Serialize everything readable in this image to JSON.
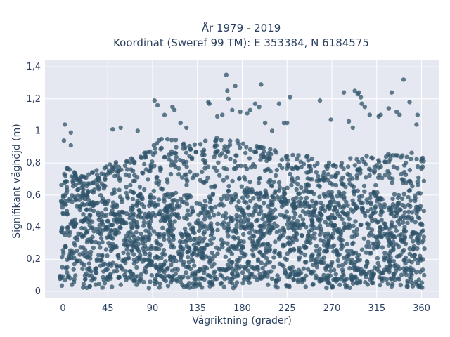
{
  "chart_data": {
    "type": "scatter",
    "title": [
      "År 1979 - 2019",
      "Koordinat (Sweref 99 TM): E 353384, N 6184575"
    ],
    "xlabel": "Vågriktning (grader)",
    "ylabel": "Signifikant våghöjd (m)",
    "xlim": [
      -18,
      378
    ],
    "ylim": [
      -0.04,
      1.44
    ],
    "xticks": [
      0,
      45,
      90,
      135,
      180,
      225,
      270,
      315,
      360
    ],
    "xtick_labels": [
      "0",
      "45",
      "90",
      "135",
      "180",
      "225",
      "270",
      "315",
      "360"
    ],
    "yticks": [
      0,
      0.2,
      0.4,
      0.6,
      0.8,
      1.0,
      1.2,
      1.4
    ],
    "ytick_labels": [
      "0",
      "0,2",
      "0,4",
      "0,6",
      "0,8",
      "1",
      "1,2",
      "1,4"
    ],
    "grid": true,
    "colors": {
      "marker": "#2f5369",
      "plot_bg": "#e5e8f0",
      "grid": "#ffffff",
      "text": "#2a3f5f"
    },
    "outliers": [
      {
        "x": 2,
        "y": 1.04
      },
      {
        "x": 8,
        "y": 0.99
      },
      {
        "x": 1,
        "y": 0.94
      },
      {
        "x": 8,
        "y": 0.91
      },
      {
        "x": 50,
        "y": 1.01
      },
      {
        "x": 58,
        "y": 1.02
      },
      {
        "x": 75,
        "y": 1.0
      },
      {
        "x": 92,
        "y": 1.19
      },
      {
        "x": 95,
        "y": 1.16
      },
      {
        "x": 102,
        "y": 1.1
      },
      {
        "x": 110,
        "y": 1.15
      },
      {
        "x": 112,
        "y": 1.13
      },
      {
        "x": 118,
        "y": 1.05
      },
      {
        "x": 124,
        "y": 1.02
      },
      {
        "x": 146,
        "y": 1.18
      },
      {
        "x": 147,
        "y": 1.17
      },
      {
        "x": 155,
        "y": 1.09
      },
      {
        "x": 160,
        "y": 1.1
      },
      {
        "x": 164,
        "y": 1.35
      },
      {
        "x": 165,
        "y": 1.25
      },
      {
        "x": 166,
        "y": 1.2
      },
      {
        "x": 170,
        "y": 1.13
      },
      {
        "x": 173,
        "y": 1.28
      },
      {
        "x": 178,
        "y": 1.12
      },
      {
        "x": 185,
        "y": 1.11
      },
      {
        "x": 188,
        "y": 1.13
      },
      {
        "x": 193,
        "y": 1.17
      },
      {
        "x": 197,
        "y": 1.15
      },
      {
        "x": 199,
        "y": 1.29
      },
      {
        "x": 203,
        "y": 1.05
      },
      {
        "x": 210,
        "y": 1.0
      },
      {
        "x": 217,
        "y": 1.17
      },
      {
        "x": 222,
        "y": 1.05
      },
      {
        "x": 225,
        "y": 1.05
      },
      {
        "x": 228,
        "y": 1.21
      },
      {
        "x": 258,
        "y": 1.19
      },
      {
        "x": 269,
        "y": 1.07
      },
      {
        "x": 282,
        "y": 1.24
      },
      {
        "x": 287,
        "y": 1.06
      },
      {
        "x": 291,
        "y": 1.02
      },
      {
        "x": 293,
        "y": 1.25
      },
      {
        "x": 296,
        "y": 1.23
      },
      {
        "x": 297,
        "y": 1.24
      },
      {
        "x": 299,
        "y": 1.21
      },
      {
        "x": 300,
        "y": 1.17
      },
      {
        "x": 303,
        "y": 1.15
      },
      {
        "x": 308,
        "y": 1.1
      },
      {
        "x": 317,
        "y": 1.09
      },
      {
        "x": 319,
        "y": 1.1
      },
      {
        "x": 327,
        "y": 1.14
      },
      {
        "x": 330,
        "y": 1.24
      },
      {
        "x": 335,
        "y": 1.12
      },
      {
        "x": 338,
        "y": 1.1
      },
      {
        "x": 342,
        "y": 1.32
      },
      {
        "x": 348,
        "y": 1.18
      },
      {
        "x": 356,
        "y": 1.1
      },
      {
        "x": 355,
        "y": 1.04
      }
    ],
    "upper_envelope": [
      {
        "x": 0,
        "y": 0.8
      },
      {
        "x": 20,
        "y": 0.72
      },
      {
        "x": 40,
        "y": 0.78
      },
      {
        "x": 60,
        "y": 0.82
      },
      {
        "x": 80,
        "y": 0.86
      },
      {
        "x": 90,
        "y": 0.93
      },
      {
        "x": 100,
        "y": 0.97
      },
      {
        "x": 135,
        "y": 0.93
      },
      {
        "x": 160,
        "y": 0.97
      },
      {
        "x": 180,
        "y": 0.93
      },
      {
        "x": 225,
        "y": 0.86
      },
      {
        "x": 250,
        "y": 0.84
      },
      {
        "x": 270,
        "y": 0.8
      },
      {
        "x": 300,
        "y": 0.85
      },
      {
        "x": 330,
        "y": 0.88
      },
      {
        "x": 360,
        "y": 0.86
      }
    ],
    "core_range": {
      "x": [
        -3,
        363
      ],
      "y_low": 0.07,
      "y_high": 0.62
    },
    "n_generated_points": 2600
  }
}
